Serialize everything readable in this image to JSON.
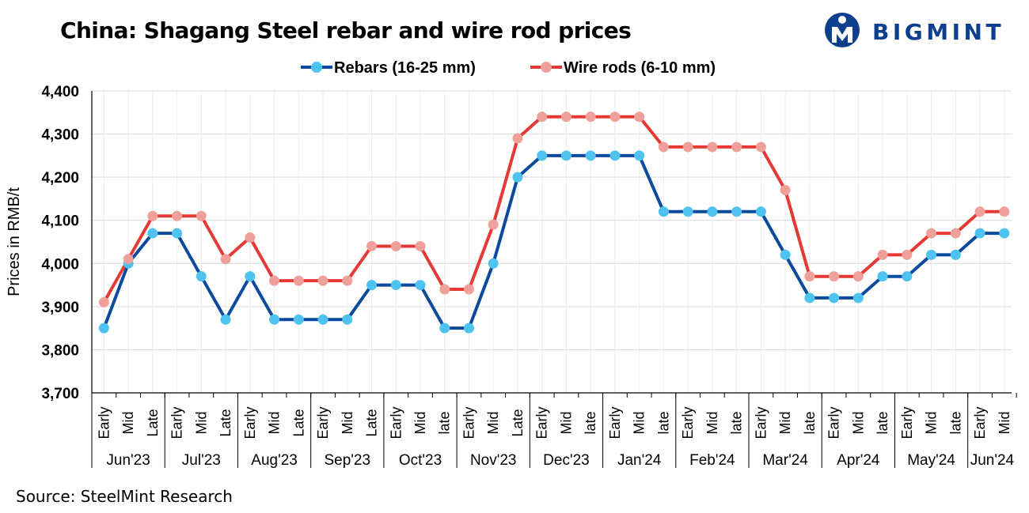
{
  "brand": {
    "name": "BIGMINT",
    "color": "#0d3f8f"
  },
  "source": "Source: SteelMint Research",
  "chart_data": {
    "type": "line",
    "title": "China: Shagang Steel rebar and wire rod prices",
    "ylabel": "Prices in RMB/t",
    "xlabel": "",
    "ylim": [
      3700,
      4400
    ],
    "yticks": [
      "3,700",
      "3,800",
      "3,900",
      "4,000",
      "4,100",
      "4,200",
      "4,300",
      "4,400"
    ],
    "ytick_values": [
      3700,
      3800,
      3900,
      4000,
      4100,
      4200,
      4300,
      4400
    ],
    "grid": true,
    "legend": "top-center",
    "periods": [
      "Early",
      "Mid",
      "Late",
      "Early",
      "Mid",
      "Late",
      "Early",
      "Mid",
      "Late",
      "Early",
      "Mid",
      "Late",
      "Early",
      "Mid",
      "late",
      "Early",
      "Mid",
      "Late",
      "Early",
      "Mid",
      "late",
      "Early",
      "Mid",
      "late",
      "Early",
      "Mid",
      "late",
      "Early",
      "Mid",
      "late",
      "Early",
      "Mid",
      "late",
      "Early",
      "Mid",
      "late",
      "Early",
      "Mid"
    ],
    "months": [
      {
        "label": "Jun'23",
        "count": 3
      },
      {
        "label": "Jul'23",
        "count": 3
      },
      {
        "label": "Aug'23",
        "count": 3
      },
      {
        "label": "Sep'23",
        "count": 3
      },
      {
        "label": "Oct'23",
        "count": 3
      },
      {
        "label": "Nov'23",
        "count": 3
      },
      {
        "label": "Dec'23",
        "count": 3
      },
      {
        "label": "Jan'24",
        "count": 3
      },
      {
        "label": "Feb'24",
        "count": 3
      },
      {
        "label": "Mar'24",
        "count": 3
      },
      {
        "label": "Apr'24",
        "count": 3
      },
      {
        "label": "May'24",
        "count": 3
      },
      {
        "label": "Jun'24",
        "count": 2
      }
    ],
    "series": [
      {
        "name": "Rebars (16-25 mm)",
        "line_color": "#0b4a9c",
        "marker_color": "#4fc3f0",
        "values": [
          3850,
          4000,
          4070,
          4070,
          3970,
          3870,
          3970,
          3870,
          3870,
          3870,
          3870,
          3950,
          3950,
          3950,
          3850,
          3850,
          4000,
          4200,
          4250,
          4250,
          4250,
          4250,
          4250,
          4120,
          4120,
          4120,
          4120,
          4120,
          4020,
          3920,
          3920,
          3920,
          3970,
          3970,
          4020,
          4020,
          4070,
          4070
        ]
      },
      {
        "name": "Wire rods (6-10 mm)",
        "line_color": "#e53935",
        "marker_color": "#f0a09a",
        "values": [
          3910,
          4010,
          4110,
          4110,
          4110,
          4010,
          4060,
          3960,
          3960,
          3960,
          3960,
          4040,
          4040,
          4040,
          3940,
          3940,
          4090,
          4290,
          4340,
          4340,
          4340,
          4340,
          4340,
          4270,
          4270,
          4270,
          4270,
          4270,
          4170,
          3970,
          3970,
          3970,
          4020,
          4020,
          4070,
          4070,
          4120,
          4120
        ]
      }
    ]
  }
}
